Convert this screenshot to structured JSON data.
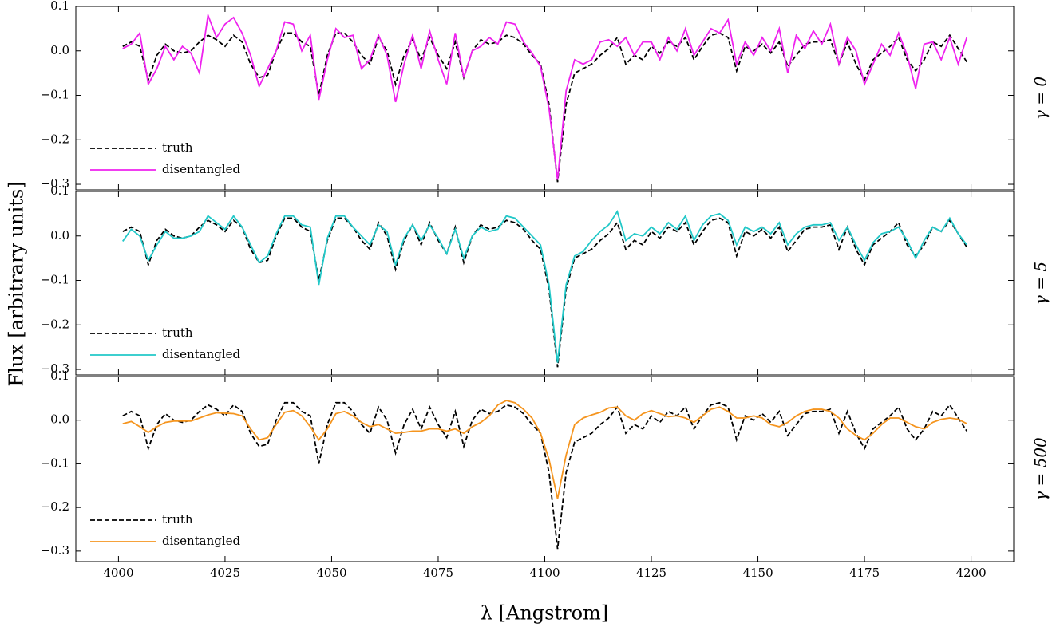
{
  "chart_data": {
    "type": "line",
    "x_label": "λ [Angstrom]",
    "y_label": "Flux [arbitrary units]",
    "legend": "lower left",
    "xlim": [
      3990,
      4210
    ],
    "xticks": [
      4000,
      4025,
      4050,
      4075,
      4100,
      4125,
      4150,
      4175,
      4200
    ],
    "x": [
      4001,
      4003,
      4005,
      4007,
      4009,
      4011,
      4013,
      4015,
      4017,
      4019,
      4021,
      4023,
      4025,
      4027,
      4029,
      4031,
      4033,
      4035,
      4037,
      4039,
      4041,
      4043,
      4045,
      4047,
      4049,
      4051,
      4053,
      4055,
      4057,
      4059,
      4061,
      4063,
      4065,
      4067,
      4069,
      4071,
      4073,
      4075,
      4077,
      4079,
      4081,
      4083,
      4085,
      4087,
      4089,
      4091,
      4093,
      4095,
      4097,
      4099,
      4101,
      4103,
      4105,
      4107,
      4109,
      4111,
      4113,
      4115,
      4117,
      4119,
      4121,
      4123,
      4125,
      4127,
      4129,
      4131,
      4133,
      4135,
      4137,
      4139,
      4141,
      4143,
      4145,
      4147,
      4149,
      4151,
      4153,
      4155,
      4157,
      4159,
      4161,
      4163,
      4165,
      4167,
      4169,
      4171,
      4173,
      4175,
      4177,
      4179,
      4181,
      4183,
      4185,
      4187,
      4189,
      4191,
      4193,
      4195,
      4197,
      4199
    ],
    "panels": [
      {
        "label": "γ = 0",
        "ylim": [
          -0.3125,
          0.1
        ],
        "yticks": [
          0.1,
          {
            "value": 0,
            "label": "0.0"
          },
          {
            "value": -0.1,
            "label": "−0.1"
          },
          {
            "value": -0.2,
            "label": "−0.2"
          },
          {
            "value": -0.3,
            "label": "−0.3"
          }
        ],
        "series": [
          {
            "name": "truth",
            "color": "#000000",
            "linestyle": "dashed",
            "values": [
              0.01,
              0.02,
              0.01,
              -0.065,
              -0.01,
              0.015,
              0.0,
              -0.005,
              0.0,
              0.02,
              0.035,
              0.025,
              0.01,
              0.035,
              0.02,
              -0.03,
              -0.06,
              -0.055,
              0.0,
              0.04,
              0.04,
              0.02,
              0.01,
              -0.1,
              -0.01,
              0.04,
              0.04,
              0.02,
              -0.01,
              -0.03,
              0.03,
              0.0,
              -0.075,
              -0.01,
              0.025,
              -0.02,
              0.03,
              -0.01,
              -0.04,
              0.02,
              -0.06,
              0.0,
              0.025,
              0.015,
              0.02,
              0.035,
              0.03,
              0.015,
              -0.01,
              -0.03,
              -0.12,
              -0.295,
              -0.12,
              -0.05,
              -0.04,
              -0.03,
              -0.01,
              0.005,
              0.03,
              -0.03,
              -0.01,
              -0.02,
              0.01,
              -0.005,
              0.02,
              0.01,
              0.03,
              -0.02,
              0.01,
              0.035,
              0.04,
              0.03,
              -0.045,
              0.01,
              0.0,
              0.015,
              -0.005,
              0.02,
              -0.035,
              -0.01,
              0.015,
              0.02,
              0.02,
              0.025,
              -0.03,
              0.02,
              -0.03,
              -0.065,
              -0.02,
              -0.005,
              0.01,
              0.03,
              -0.02,
              -0.045,
              -0.02,
              0.02,
              0.01,
              0.035,
              0.005,
              -0.025
            ]
          },
          {
            "name": "disentangled",
            "color": "#ee22ee",
            "linestyle": "solid",
            "values": [
              0.005,
              0.015,
              0.04,
              -0.075,
              -0.04,
              0.01,
              -0.02,
              0.01,
              -0.005,
              -0.05,
              0.08,
              0.03,
              0.06,
              0.075,
              0.04,
              -0.01,
              -0.08,
              -0.04,
              0.0,
              0.065,
              0.06,
              0.0,
              0.035,
              -0.11,
              -0.02,
              0.05,
              0.03,
              0.035,
              -0.04,
              -0.02,
              0.035,
              -0.01,
              -0.115,
              -0.03,
              0.035,
              -0.04,
              0.045,
              -0.02,
              -0.075,
              0.04,
              -0.06,
              0.0,
              0.01,
              0.03,
              0.015,
              0.065,
              0.06,
              0.02,
              -0.005,
              -0.035,
              -0.13,
              -0.29,
              -0.09,
              -0.02,
              -0.03,
              -0.02,
              0.02,
              0.025,
              0.01,
              0.03,
              -0.01,
              0.02,
              0.02,
              -0.02,
              0.03,
              0.0,
              0.05,
              -0.01,
              0.02,
              0.05,
              0.04,
              0.07,
              -0.03,
              0.02,
              -0.01,
              0.03,
              0.0,
              0.05,
              -0.05,
              0.035,
              0.005,
              0.045,
              0.015,
              0.06,
              -0.03,
              0.03,
              0.0,
              -0.075,
              -0.03,
              0.015,
              -0.01,
              0.04,
              -0.01,
              -0.085,
              0.015,
              0.02,
              -0.02,
              0.03,
              -0.03,
              0.03
            ]
          }
        ]
      },
      {
        "label": "γ = 5",
        "ylim": [
          -0.3125,
          0.1
        ],
        "yticks": [
          0.1,
          {
            "value": 0,
            "label": "0.0"
          },
          {
            "value": -0.1,
            "label": "−0.1"
          },
          {
            "value": -0.2,
            "label": "−0.2"
          },
          {
            "value": -0.3,
            "label": "−0.3"
          }
        ],
        "series": [
          {
            "name": "truth",
            "color": "#000000",
            "linestyle": "dashed",
            "values": [
              0.01,
              0.02,
              0.01,
              -0.065,
              -0.01,
              0.015,
              0.0,
              -0.005,
              0.0,
              0.02,
              0.035,
              0.025,
              0.01,
              0.035,
              0.02,
              -0.03,
              -0.06,
              -0.055,
              0.0,
              0.04,
              0.04,
              0.02,
              0.01,
              -0.1,
              -0.01,
              0.04,
              0.04,
              0.02,
              -0.01,
              -0.03,
              0.03,
              0.0,
              -0.075,
              -0.01,
              0.025,
              -0.02,
              0.03,
              -0.01,
              -0.04,
              0.02,
              -0.06,
              0.0,
              0.025,
              0.015,
              0.02,
              0.035,
              0.03,
              0.015,
              -0.01,
              -0.03,
              -0.12,
              -0.295,
              -0.12,
              -0.05,
              -0.04,
              -0.03,
              -0.01,
              0.005,
              0.03,
              -0.03,
              -0.01,
              -0.02,
              0.01,
              -0.005,
              0.02,
              0.01,
              0.03,
              -0.02,
              0.01,
              0.035,
              0.04,
              0.03,
              -0.045,
              0.01,
              0.0,
              0.015,
              -0.005,
              0.02,
              -0.035,
              -0.01,
              0.015,
              0.02,
              0.02,
              0.025,
              -0.03,
              0.02,
              -0.03,
              -0.065,
              -0.02,
              -0.005,
              0.01,
              0.03,
              -0.02,
              -0.045,
              -0.02,
              0.02,
              0.01,
              0.035,
              0.005,
              -0.025
            ]
          },
          {
            "name": "disentangled",
            "color": "#22c8c8",
            "linestyle": "solid",
            "values": [
              -0.012,
              0.015,
              0.0,
              -0.055,
              -0.02,
              0.01,
              -0.005,
              -0.005,
              0.0,
              0.01,
              0.045,
              0.03,
              0.015,
              0.045,
              0.02,
              -0.02,
              -0.06,
              -0.045,
              0.005,
              0.045,
              0.045,
              0.025,
              0.02,
              -0.11,
              -0.005,
              0.045,
              0.045,
              0.02,
              0.0,
              -0.02,
              0.025,
              0.01,
              -0.065,
              -0.005,
              0.025,
              -0.01,
              0.025,
              -0.005,
              -0.04,
              0.015,
              -0.05,
              0.0,
              0.02,
              0.01,
              0.015,
              0.045,
              0.04,
              0.02,
              0.0,
              -0.02,
              -0.11,
              -0.285,
              -0.11,
              -0.045,
              -0.035,
              -0.01,
              0.01,
              0.025,
              0.055,
              -0.01,
              0.005,
              0.0,
              0.02,
              0.005,
              0.03,
              0.015,
              0.045,
              -0.01,
              0.025,
              0.045,
              0.05,
              0.035,
              -0.02,
              0.02,
              0.01,
              0.02,
              0.005,
              0.03,
              -0.02,
              0.005,
              0.02,
              0.025,
              0.025,
              0.03,
              -0.01,
              0.02,
              -0.02,
              -0.055,
              -0.015,
              0.005,
              0.01,
              0.02,
              -0.01,
              -0.05,
              -0.01,
              0.02,
              0.01,
              0.04,
              0.005,
              -0.02
            ]
          }
        ]
      },
      {
        "label": "γ = 500",
        "ylim": [
          -0.324,
          0.1
        ],
        "yticks": [
          0.1,
          {
            "value": 0,
            "label": "0.0"
          },
          {
            "value": -0.1,
            "label": "−0.1"
          },
          {
            "value": -0.2,
            "label": "−0.2"
          },
          {
            "value": -0.3,
            "label": "−0.3"
          }
        ],
        "series": [
          {
            "name": "truth",
            "color": "#000000",
            "linestyle": "dashed",
            "values": [
              0.01,
              0.02,
              0.01,
              -0.065,
              -0.01,
              0.015,
              0.0,
              -0.005,
              0.0,
              0.02,
              0.035,
              0.025,
              0.01,
              0.035,
              0.02,
              -0.03,
              -0.06,
              -0.055,
              0.0,
              0.04,
              0.04,
              0.02,
              0.01,
              -0.1,
              -0.01,
              0.04,
              0.04,
              0.02,
              -0.01,
              -0.03,
              0.03,
              0.0,
              -0.075,
              -0.01,
              0.025,
              -0.02,
              0.03,
              -0.01,
              -0.04,
              0.02,
              -0.06,
              0.0,
              0.025,
              0.015,
              0.02,
              0.035,
              0.03,
              0.015,
              -0.01,
              -0.03,
              -0.12,
              -0.295,
              -0.12,
              -0.05,
              -0.04,
              -0.03,
              -0.01,
              0.005,
              0.03,
              -0.03,
              -0.01,
              -0.02,
              0.01,
              -0.005,
              0.02,
              0.01,
              0.03,
              -0.02,
              0.01,
              0.035,
              0.04,
              0.03,
              -0.045,
              0.01,
              0.0,
              0.015,
              -0.005,
              0.02,
              -0.035,
              -0.01,
              0.015,
              0.02,
              0.02,
              0.025,
              -0.03,
              0.02,
              -0.03,
              -0.065,
              -0.02,
              -0.005,
              0.01,
              0.03,
              -0.02,
              -0.045,
              -0.02,
              0.02,
              0.01,
              0.035,
              0.005,
              -0.025
            ]
          },
          {
            "name": "disentangled",
            "color": "#f5951f",
            "linestyle": "solid",
            "values": [
              -0.008,
              -0.003,
              -0.015,
              -0.028,
              -0.015,
              -0.005,
              -0.002,
              -0.002,
              -0.002,
              0.005,
              0.012,
              0.017,
              0.016,
              0.015,
              0.01,
              -0.02,
              -0.045,
              -0.04,
              -0.01,
              0.018,
              0.022,
              0.01,
              -0.015,
              -0.045,
              -0.02,
              0.015,
              0.02,
              0.01,
              -0.005,
              -0.015,
              -0.01,
              -0.02,
              -0.03,
              -0.028,
              -0.025,
              -0.025,
              -0.02,
              -0.02,
              -0.025,
              -0.02,
              -0.03,
              -0.015,
              -0.005,
              0.01,
              0.035,
              0.045,
              0.04,
              0.025,
              0.005,
              -0.03,
              -0.09,
              -0.18,
              -0.08,
              -0.01,
              0.005,
              0.012,
              0.018,
              0.028,
              0.03,
              0.01,
              0.0,
              0.015,
              0.022,
              0.015,
              0.008,
              0.01,
              0.005,
              -0.005,
              0.01,
              0.025,
              0.03,
              0.02,
              0.005,
              0.005,
              0.01,
              0.005,
              -0.01,
              -0.015,
              -0.005,
              0.01,
              0.02,
              0.025,
              0.025,
              0.02,
              0.005,
              -0.02,
              -0.035,
              -0.045,
              -0.03,
              -0.01,
              0.005,
              0.005,
              -0.005,
              -0.015,
              -0.02,
              -0.005,
              0.002,
              0.005,
              0.002,
              -0.008
            ]
          }
        ]
      }
    ]
  }
}
